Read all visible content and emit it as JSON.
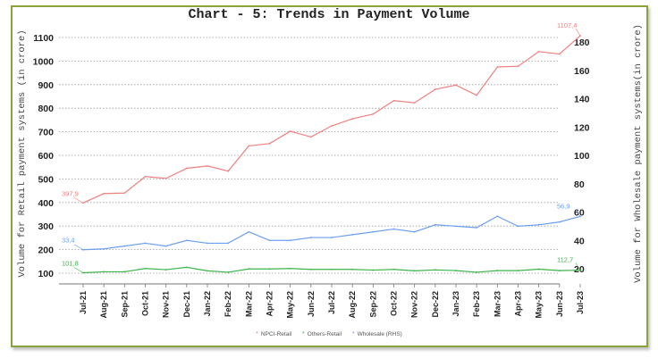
{
  "title": "Chart - 5: Trends in Payment Volume",
  "chart_data": {
    "type": "line",
    "title": "Chart - 5: Trends in Payment Volume",
    "xlabel": "",
    "ylabel": "Volume for Retail payment systems (in crore)",
    "ylabel_right": "Volume for Wholesale payment systems(in crore)",
    "ylim": [
      100,
      1100
    ],
    "ylim_right": [
      20,
      180
    ],
    "yticks": [
      100,
      200,
      300,
      400,
      500,
      600,
      700,
      800,
      900,
      1000,
      1100
    ],
    "yticks_right": [
      20,
      40,
      60,
      80,
      100,
      120,
      140,
      160,
      180
    ],
    "grid": true,
    "legend_position": "bottom",
    "categories": [
      "Jul-21",
      "Aug-21",
      "Sep-21",
      "Oct-21",
      "Nov-21",
      "Dec-21",
      "Jan-22",
      "Feb-22",
      "Mar-22",
      "Apr-22",
      "May-22",
      "Jun-22",
      "Jul-22",
      "Aug-22",
      "Sep-22",
      "Oct-22",
      "Nov-22",
      "Dec-22",
      "Jan-23",
      "Feb-23",
      "Mar-23",
      "Apr-23",
      "May-23",
      "Jun-23",
      "Jul-23"
    ],
    "series": [
      {
        "name": "NPCI-Retail",
        "axis": "left",
        "color": "#f08080",
        "values": [
          397.9,
          438,
          440,
          510,
          502,
          545,
          555,
          533,
          640,
          650,
          702,
          678,
          725,
          755,
          775,
          832,
          823,
          880,
          898,
          855,
          975,
          978,
          1040,
          1030,
          1107.4
        ],
        "annotations": {
          "first": "397,9",
          "last": "1107,4"
        }
      },
      {
        "name": "Others-Retail",
        "axis": "left",
        "color": "#3cb44b",
        "values": [
          101.8,
          106,
          106,
          120,
          115,
          125,
          110,
          104,
          118,
          118,
          120,
          116,
          116,
          116,
          113,
          116,
          110,
          114,
          111,
          104,
          111,
          111,
          117,
          111,
          112.7
        ],
        "annotations": {
          "first": "101,8",
          "last": "112,7"
        }
      },
      {
        "name": "Wholesale (RHS)",
        "axis": "right",
        "color": "#6c9ef0",
        "values": [
          33.4,
          34,
          36,
          38,
          36,
          40,
          38,
          38,
          46,
          40,
          40,
          42,
          42,
          44,
          46,
          48,
          46,
          51,
          50,
          49,
          57,
          50,
          51,
          53,
          56.9
        ],
        "annotations": {
          "first": "33,4",
          "last": "56,9"
        }
      }
    ]
  },
  "legend": [
    {
      "label": "NPCI-Retail",
      "color": "#f08080",
      "marker": "*"
    },
    {
      "label": "Others-Retail",
      "color": "#3cb44b",
      "marker": "*"
    },
    {
      "label": "Wholesale (RHS)",
      "color": "#6c9ef0",
      "marker": "*"
    }
  ]
}
